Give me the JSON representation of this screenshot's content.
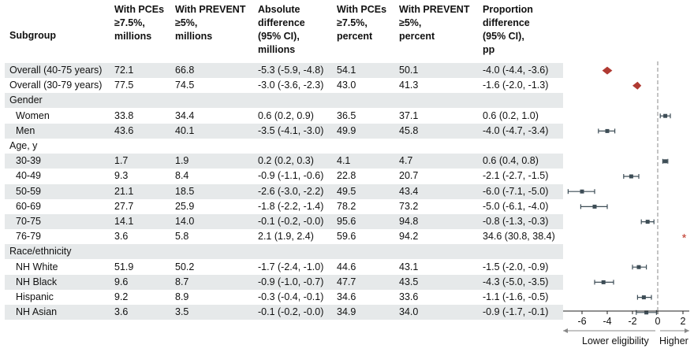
{
  "headers": [
    [
      "Subgroup"
    ],
    [
      "With PCEs",
      "≥7.5%,",
      "millions"
    ],
    [
      "With PREVENT",
      "≥5%,",
      "millions"
    ],
    [
      "Absolute",
      "difference",
      "(95% CI),",
      "millions"
    ],
    [
      "With PCEs",
      "≥7.5%,",
      "percent"
    ],
    [
      "With PREVENT",
      "≥5%,",
      "percent"
    ],
    [
      "Proportion",
      "difference",
      "(95% CI),",
      "pp"
    ]
  ],
  "rows": [
    {
      "label": "Overall (40-75 years)",
      "pces_m": "72.1",
      "prevent_m": "66.8",
      "abs_diff": "-5.3 (-5.9, -4.8)",
      "pces_pct": "54.1",
      "prevent_pct": "50.1",
      "prop_diff": "-4.0 (-4.4, -3.6)"
    },
    {
      "label": "Overall (30-79 years)",
      "pces_m": "77.5",
      "prevent_m": "74.5",
      "abs_diff": "-3.0 (-3.6, -2.3)",
      "pces_pct": "43.0",
      "prevent_pct": "41.3",
      "prop_diff": "-1.6 (-2.0, -1.3)"
    },
    {
      "label": "Gender",
      "pces_m": "",
      "prevent_m": "",
      "abs_diff": "",
      "pces_pct": "",
      "prevent_pct": "",
      "prop_diff": ""
    },
    {
      "label": "Women",
      "pces_m": "33.8",
      "prevent_m": "34.4",
      "abs_diff": "0.6 (0.2, 0.9)",
      "pces_pct": "36.5",
      "prevent_pct": "37.1",
      "prop_diff": "0.6 (0.2, 1.0)"
    },
    {
      "label": "Men",
      "pces_m": "43.6",
      "prevent_m": "40.1",
      "abs_diff": "-3.5 (-4.1, -3.0)",
      "pces_pct": "49.9",
      "prevent_pct": "45.8",
      "prop_diff": "-4.0 (-4.7, -3.4)"
    },
    {
      "label": "Age, y",
      "pces_m": "",
      "prevent_m": "",
      "abs_diff": "",
      "pces_pct": "",
      "prevent_pct": "",
      "prop_diff": ""
    },
    {
      "label": "30-39",
      "pces_m": "1.7",
      "prevent_m": "1.9",
      "abs_diff": "0.2 (0.2, 0.3)",
      "pces_pct": "4.1",
      "prevent_pct": "4.7",
      "prop_diff": "0.6 (0.4, 0.8)"
    },
    {
      "label": "40-49",
      "pces_m": "9.3",
      "prevent_m": "8.4",
      "abs_diff": "-0.9 (-1.1, -0.6)",
      "pces_pct": "22.8",
      "prevent_pct": "20.7",
      "prop_diff": "-2.1 (-2.7, -1.5)"
    },
    {
      "label": "50-59",
      "pces_m": "21.1",
      "prevent_m": "18.5",
      "abs_diff": "-2.6 (-3.0, -2.2)",
      "pces_pct": "49.5",
      "prevent_pct": "43.4",
      "prop_diff": "-6.0 (-7.1, -5.0)"
    },
    {
      "label": "60-69",
      "pces_m": "27.7",
      "prevent_m": "25.9",
      "abs_diff": "-1.8 (-2.2, -1.4)",
      "pces_pct": "78.2",
      "prevent_pct": "73.2",
      "prop_diff": "-5.0 (-6.1, -4.0)"
    },
    {
      "label": "70-75",
      "pces_m": "14.1",
      "prevent_m": "14.0",
      "abs_diff": "-0.1 (-0.2, -0.0)",
      "pces_pct": "95.6",
      "prevent_pct": "94.8",
      "prop_diff": "-0.8 (-1.3, -0.3)"
    },
    {
      "label": "76-79",
      "pces_m": "3.6",
      "prevent_m": "5.8",
      "abs_diff": "2.1 (1.9, 2.4)",
      "pces_pct": "59.6",
      "prevent_pct": "94.2",
      "prop_diff": "34.6 (30.8, 38.4)"
    },
    {
      "label": "Race/ethnicity",
      "pces_m": "",
      "prevent_m": "",
      "abs_diff": "",
      "pces_pct": "",
      "prevent_pct": "",
      "prop_diff": ""
    },
    {
      "label": "NH White",
      "pces_m": "51.9",
      "prevent_m": "50.2",
      "abs_diff": "-1.7 (-2.4, -1.0)",
      "pces_pct": "44.6",
      "prevent_pct": "43.1",
      "prop_diff": "-1.5 (-2.0, -0.9)"
    },
    {
      "label": "NH Black",
      "pces_m": "9.6",
      "prevent_m": "8.7",
      "abs_diff": "-0.9 (-1.0, -0.7)",
      "pces_pct": "47.7",
      "prevent_pct": "43.5",
      "prop_diff": "-4.3 (-5.0, -3.5)"
    },
    {
      "label": "Hispanic",
      "pces_m": "9.2",
      "prevent_m": "8.9",
      "abs_diff": "-0.3 (-0.4, -0.1)",
      "pces_pct": "34.6",
      "prevent_pct": "33.6",
      "prop_diff": "-1.1 (-1.6, -0.5)"
    },
    {
      "label": "NH Asian",
      "pces_m": "3.6",
      "prevent_m": "3.5",
      "abs_diff": "-0.1 (-0.2, -0.0)",
      "pces_pct": "34.9",
      "prevent_pct": "34.0",
      "prop_diff": "-0.9 (-1.7, -0.1)"
    }
  ],
  "chart_data": {
    "type": "scatter",
    "subtype": "forest-plot",
    "categories": [
      "Overall (40-75 years)",
      "Overall (30-79 years)",
      "Women",
      "Men",
      "30-39",
      "40-49",
      "50-59",
      "60-69",
      "70-75",
      "76-79",
      "NH White",
      "NH Black",
      "Hispanic",
      "NH Asian"
    ],
    "estimates": [
      -4.0,
      -1.6,
      0.6,
      -4.0,
      0.6,
      -2.1,
      -6.0,
      -5.0,
      -0.8,
      34.6,
      -1.5,
      -4.3,
      -1.1,
      -0.9
    ],
    "ci_low": [
      -4.4,
      -2.0,
      0.2,
      -4.7,
      0.4,
      -2.7,
      -7.1,
      -6.1,
      -1.3,
      30.8,
      -2.0,
      -5.0,
      -1.6,
      -1.7
    ],
    "ci_high": [
      -3.6,
      -1.3,
      1.0,
      -3.4,
      0.8,
      -1.5,
      -5.0,
      -4.0,
      -0.3,
      38.4,
      -0.9,
      -3.5,
      -0.5,
      -0.1
    ],
    "overall_rows": [
      "Overall (40-75 years)",
      "Overall (30-79 years)"
    ],
    "off_scale_rows": [
      "76-79"
    ],
    "off_scale_marker": "*",
    "xticks": [
      -6,
      -4,
      -2,
      0,
      2
    ],
    "xlim": [
      -7.5,
      2.5
    ],
    "reference_line": 0,
    "xlabel_left": "Lower eligibility",
    "xlabel_right": "Higher",
    "colors": {
      "overall_marker": "#b03a32",
      "point_marker": "#3d4d56",
      "off_scale_marker": "#c0392b",
      "reference_line": "#8a8a8a",
      "row_shade": "#e6e9ea"
    }
  }
}
